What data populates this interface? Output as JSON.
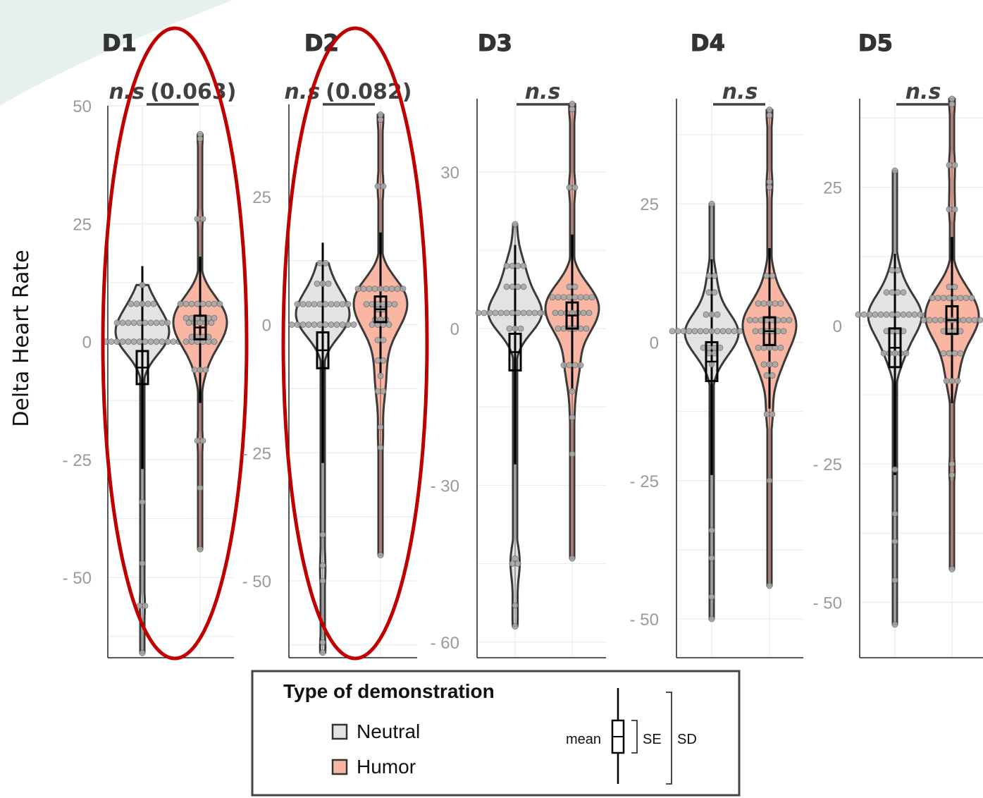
{
  "chart_data": {
    "type": "violin",
    "ylabel": "Delta Heart Rate",
    "colors": {
      "Neutral": "#e3e3e3",
      "Humor": "#f8b6a3",
      "outline": "#3a3a3a",
      "highlight": "#c00000",
      "grid": "#ececec",
      "swoosh": "#cfe6d9"
    },
    "categories": [
      "Neutral",
      "Humor"
    ],
    "panels": [
      {
        "title": "D1",
        "significance": "n.s",
        "p_value": "(0.063)",
        "highlighted": true,
        "ylim": [
          -67,
          50
        ],
        "yticks": [
          50,
          25,
          0,
          -25,
          -50
        ],
        "yticklabels": [
          "50",
          "25",
          "0",
          "- 25",
          "- 50"
        ],
        "series": [
          {
            "name": "Neutral",
            "mean": -5.5,
            "se": 3.5,
            "sd_low": -27,
            "sd_high": 16,
            "points": [
              12,
              8,
              8,
              8,
              8,
              8,
              4,
              4,
              4,
              4,
              4,
              4,
              4,
              4,
              4,
              4,
              0,
              0,
              0,
              0,
              0,
              0,
              0,
              0,
              0,
              0,
              0,
              0,
              0,
              0,
              -34,
              -47,
              -56,
              -56,
              -66
            ]
          },
          {
            "name": "Humor",
            "mean": 3,
            "se": 2.5,
            "sd_low": -13,
            "sd_high": 18,
            "points": [
              44,
              43,
              26,
              26,
              8,
              8,
              8,
              8,
              8,
              8,
              8,
              8,
              5,
              5,
              5,
              5,
              5,
              5,
              4,
              4,
              4,
              4,
              4,
              1,
              1,
              1,
              1,
              0,
              0,
              0,
              0,
              0,
              0,
              -6,
              -6,
              -6,
              -21,
              -21,
              -31,
              -44
            ]
          }
        ]
      },
      {
        "title": "D2",
        "significance": "n.s",
        "p_value": "(0.082)",
        "highlighted": true,
        "ylim": [
          -65,
          43
        ],
        "yticks": [
          25,
          0,
          -25,
          -50
        ],
        "yticklabels": [
          "25",
          "0",
          "- 25",
          "- 50"
        ],
        "series": [
          {
            "name": "Neutral",
            "mean": -5,
            "se": 3.5,
            "sd_low": -27,
            "sd_high": 16,
            "points": [
              12,
              12,
              8,
              8,
              8,
              4,
              4,
              4,
              4,
              4,
              4,
              4,
              4,
              4,
              4,
              0,
              0,
              0,
              0,
              0,
              0,
              0,
              0,
              0,
              0,
              0,
              0,
              -41,
              -47,
              -50,
              -62,
              -64
            ]
          },
          {
            "name": "Humor",
            "mean": 3,
            "se": 2.5,
            "sd_low": -10,
            "sd_high": 18,
            "points": [
              41,
              40,
              27,
              27,
              7,
              7,
              7,
              7,
              7,
              7,
              7,
              7,
              7,
              4,
              4,
              4,
              4,
              4,
              4,
              3,
              3,
              1,
              1,
              1,
              0,
              0,
              0,
              0,
              -3,
              -3,
              -7,
              -7,
              -10,
              -13,
              -13,
              -20,
              -24,
              -45
            ]
          }
        ]
      },
      {
        "title": "D3",
        "significance": "n.s",
        "p_value": "",
        "highlighted": false,
        "ylim": [
          -63,
          44
        ],
        "yticks": [
          30,
          0,
          -30,
          -60
        ],
        "yticklabels": [
          "30",
          "0",
          "- 30",
          "- 60"
        ],
        "series": [
          {
            "name": "Neutral",
            "mean": -4.5,
            "se": 3.5,
            "sd_low": -26,
            "sd_high": 16,
            "points": [
              20,
              12,
              12,
              12,
              12,
              8,
              8,
              8,
              8,
              3,
              3,
              3,
              3,
              3,
              3,
              3,
              3,
              3,
              3,
              3,
              3,
              3,
              3,
              0,
              0,
              0,
              -44,
              -45,
              -45,
              -53,
              -57
            ]
          },
          {
            "name": "Humor",
            "mean": 2.5,
            "se": 2.5,
            "sd_low": -12,
            "sd_high": 18,
            "points": [
              43,
              42,
              27,
              27,
              8,
              8,
              6,
              6,
              6,
              6,
              6,
              6,
              6,
              6,
              3,
              3,
              3,
              3,
              3,
              3,
              3,
              0,
              0,
              0,
              0,
              0,
              0,
              -7,
              -7,
              -7,
              -7,
              -12,
              -17,
              -24,
              -44
            ]
          }
        ]
      },
      {
        "title": "D4",
        "significance": "n.s",
        "p_value": "",
        "highlighted": false,
        "ylim": [
          -57,
          44
        ],
        "yticks": [
          25,
          0,
          -25,
          -50
        ],
        "yticklabels": [
          "25",
          "0",
          "- 25",
          "- 50"
        ],
        "series": [
          {
            "name": "Neutral",
            "mean": -3.5,
            "se": 3.5,
            "sd_low": -24,
            "sd_high": 15,
            "points": [
              25,
              12,
              12,
              9,
              9,
              5,
              5,
              5,
              2,
              2,
              2,
              2,
              2,
              2,
              2,
              2,
              2,
              2,
              2,
              2,
              2,
              2,
              2,
              -1,
              -1,
              -1,
              -1,
              -2,
              -2,
              -4,
              -34,
              -39,
              -46,
              -50
            ]
          },
          {
            "name": "Humor",
            "mean": 2,
            "se": 2.5,
            "sd_low": -12,
            "sd_high": 17,
            "points": [
              42,
              41,
              29,
              28,
              12,
              12,
              7,
              7,
              7,
              7,
              7,
              4,
              4,
              4,
              4,
              4,
              4,
              4,
              4,
              2,
              2,
              2,
              2,
              2,
              2,
              -1,
              -1,
              -1,
              -1,
              -1,
              -4,
              -4,
              -4,
              -6,
              -6,
              -13,
              -13,
              -25,
              -44
            ]
          }
        ]
      },
      {
        "title": "D5",
        "significance": "n.s",
        "p_value": "",
        "highlighted": false,
        "ylim": [
          -60,
          41
        ],
        "yticks": [
          25,
          0,
          -25,
          -50
        ],
        "yticklabels": [
          "25",
          "0",
          "- 25",
          "- 50"
        ],
        "series": [
          {
            "name": "Neutral",
            "mean": -4,
            "se": 3.5,
            "sd_low": -27,
            "sd_high": 13,
            "points": [
              28,
              10,
              10,
              6,
              6,
              6,
              6,
              2,
              2,
              2,
              2,
              2,
              2,
              2,
              2,
              2,
              2,
              2,
              2,
              2,
              2,
              -1,
              -1,
              -1,
              -1,
              -5,
              -5,
              -5,
              -5,
              -5,
              -26,
              -34,
              -39,
              -46,
              -54
            ]
          },
          {
            "name": "Humor",
            "mean": 1,
            "se": 2.5,
            "sd_low": -14,
            "sd_high": 16,
            "points": [
              41,
              40,
              29,
              29,
              21,
              21,
              7,
              7,
              5,
              5,
              5,
              5,
              5,
              5,
              5,
              5,
              1,
              1,
              1,
              1,
              1,
              1,
              1,
              1,
              1,
              1,
              1,
              -1,
              -1,
              -1,
              -1,
              -5,
              -5,
              -5,
              -5,
              -10,
              -10,
              -10,
              -25,
              -27,
              -44
            ]
          }
        ]
      }
    ],
    "legend": {
      "title": "Type of demonstration",
      "items": [
        "Neutral",
        "Humor"
      ],
      "key_labels": {
        "mean": "mean",
        "se": "SE",
        "sd": "SD"
      }
    }
  }
}
